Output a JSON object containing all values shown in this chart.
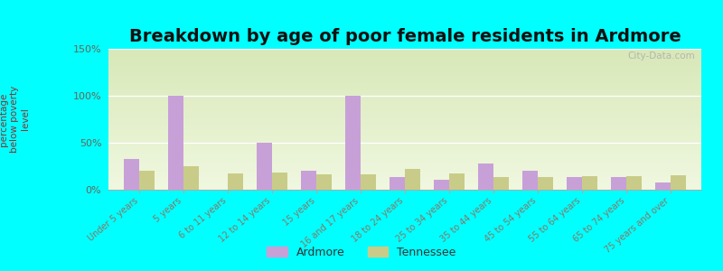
{
  "title": "Breakdown by age of poor female residents in Ardmore",
  "ylabel": "percentage\nbelow poverty\nlevel",
  "categories": [
    "Under 5 years",
    "5 years",
    "6 to 11 years",
    "12 to 14 years",
    "15 years",
    "16 and 17 years",
    "18 to 24 years",
    "25 to 34 years",
    "35 to 44 years",
    "45 to 54 years",
    "55 to 64 years",
    "65 to 74 years",
    "75 years and over"
  ],
  "ardmore_values": [
    33,
    100,
    0,
    50,
    20,
    100,
    13,
    11,
    28,
    20,
    13,
    13,
    8
  ],
  "tennessee_values": [
    20,
    25,
    17,
    18,
    16,
    16,
    22,
    17,
    13,
    13,
    14,
    14,
    15
  ],
  "ardmore_color": "#c8a0d8",
  "tennessee_color": "#c8cc88",
  "bg_outer": "#00ffff",
  "plot_bg_top": "#d8e8b8",
  "plot_bg_bottom": "#f0f8e0",
  "ylim": [
    0,
    150
  ],
  "yticks": [
    0,
    50,
    100,
    150
  ],
  "ytick_labels": [
    "0%",
    "50%",
    "100%",
    "150%"
  ],
  "bar_width": 0.35,
  "title_fontsize": 14,
  "legend_labels": [
    "Ardmore",
    "Tennessee"
  ],
  "watermark": "City-Data.com",
  "ylabel_color": "#883333",
  "tick_color": "#887766",
  "ytick_color": "#666655"
}
